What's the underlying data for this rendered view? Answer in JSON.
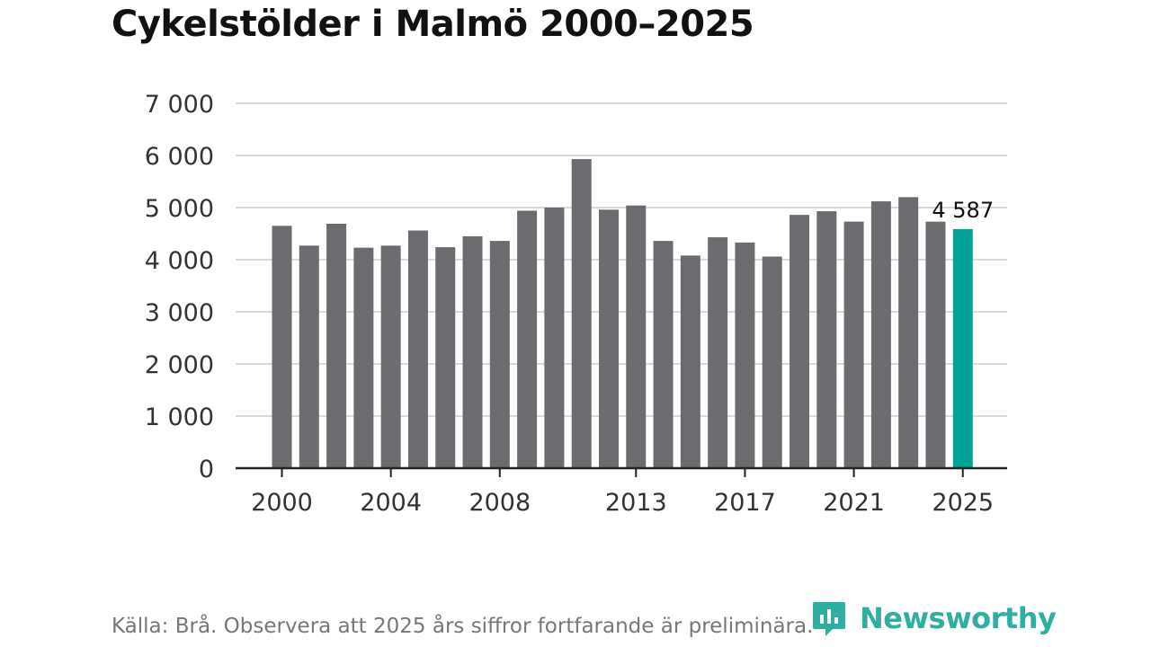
{
  "title": "Cykelstölder i Malmö 2000–2025",
  "chart_data": {
    "type": "bar",
    "title": "Cykelstölder i Malmö 2000–2025",
    "xlabel": "",
    "ylabel": "",
    "categories": [
      "2000",
      "2001",
      "2002",
      "2003",
      "2004",
      "2005",
      "2006",
      "2007",
      "2008",
      "2009",
      "2010",
      "2011",
      "2012",
      "2013",
      "2014",
      "2015",
      "2016",
      "2017",
      "2018",
      "2019",
      "2020",
      "2021",
      "2022",
      "2023",
      "2024",
      "2025"
    ],
    "values": [
      4650,
      4270,
      4690,
      4230,
      4270,
      4560,
      4240,
      4450,
      4360,
      4940,
      5000,
      5930,
      4960,
      5040,
      4360,
      4080,
      4430,
      4330,
      4060,
      4860,
      4930,
      4730,
      5120,
      5200,
      4730,
      4587
    ],
    "ylim": [
      0,
      7000
    ],
    "yticks": [
      0,
      1000,
      2000,
      3000,
      4000,
      5000,
      6000,
      7000
    ],
    "ytick_labels": [
      "0",
      "1 000",
      "2 000",
      "3 000",
      "4 000",
      "5 000",
      "6 000",
      "7 000"
    ],
    "xtick_labels": [
      "2000",
      "2004",
      "2008",
      "2013",
      "2017",
      "2021",
      "2025"
    ],
    "highlight_category": "2025",
    "highlight_label": "4 587",
    "grid": true,
    "colors": {
      "bar": "#6c6b70",
      "highlight": "#00a396",
      "grid": "#d9d9d9",
      "axis": "#222222"
    }
  },
  "footer": {
    "source": "Källa: Brå. Observera att 2025 års siffror fortfarande är preliminära.",
    "brand": "Newsworthy"
  }
}
